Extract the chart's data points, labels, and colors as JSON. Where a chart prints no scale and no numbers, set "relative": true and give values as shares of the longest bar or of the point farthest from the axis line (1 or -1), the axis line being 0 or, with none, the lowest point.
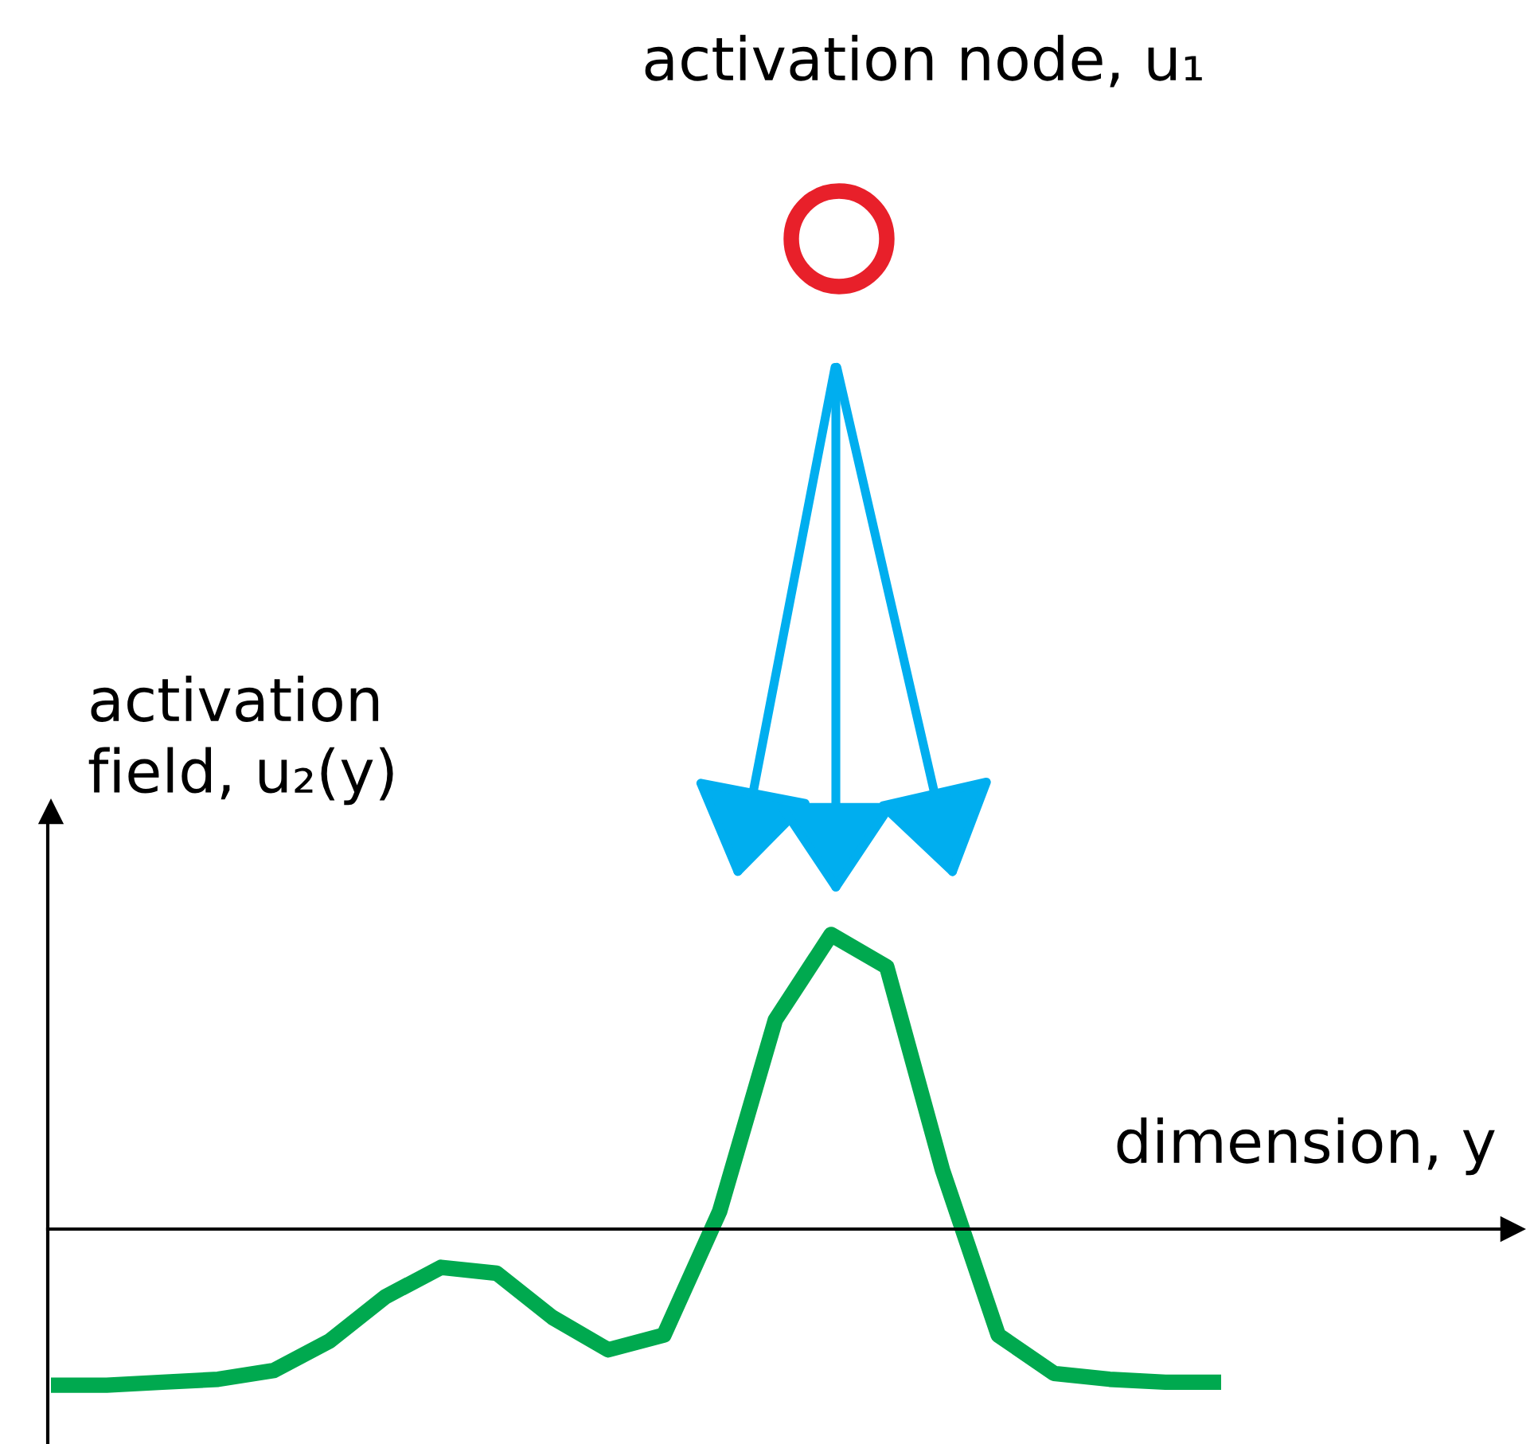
{
  "chart_data": {
    "type": "line",
    "relative": true,
    "title": "activation node, u₁",
    "xlabel": "dimension, y",
    "ylabel": "activation\nfield, u₂(y)",
    "categories": [
      null,
      null,
      null,
      null,
      null,
      null,
      null,
      null,
      null,
      null,
      null,
      null,
      null,
      null,
      null,
      null,
      null,
      null,
      null,
      null,
      null,
      null
    ],
    "series": [
      {
        "color": "#00a94f",
        "values": [
          -0.53,
          -0.53,
          -0.52,
          -0.51,
          -0.48,
          -0.38,
          -0.23,
          -0.13,
          -0.15,
          -0.3,
          -0.41,
          -0.36,
          0.06,
          0.71,
          1,
          0.89,
          0.2,
          -0.36,
          -0.49,
          -0.51,
          -0.52,
          -0.52
        ]
      }
    ],
    "marker": "none",
    "line_style": "solid"
  }
}
